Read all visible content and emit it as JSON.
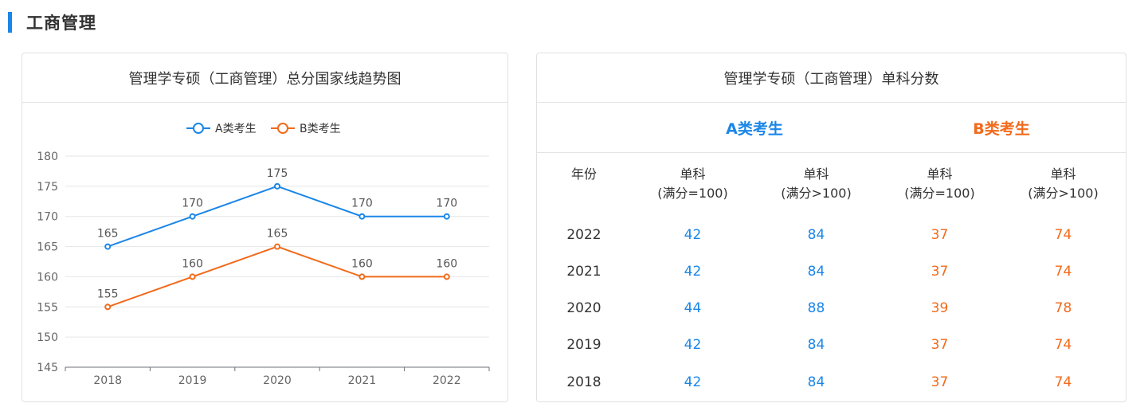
{
  "section": {
    "title": "工商管理"
  },
  "left_card": {
    "title": "管理学专硕（工商管理）总分国家线趋势图"
  },
  "right_card": {
    "title": "管理学专硕（工商管理）单科分数",
    "group_a": "A类考生",
    "group_b": "B类考生",
    "col_year": "年份",
    "col1_line1": "单科",
    "col1_line2": "(满分=100)",
    "col2_line1": "单科",
    "col2_line2": "(满分>100)",
    "col3_line1": "单科",
    "col3_line2": "(满分=100)",
    "col4_line1": "单科",
    "col4_line2": "(满分>100)",
    "rows": [
      {
        "year": "2022",
        "a1": "42",
        "a2": "84",
        "b1": "37",
        "b2": "74"
      },
      {
        "year": "2021",
        "a1": "42",
        "a2": "84",
        "b1": "37",
        "b2": "74"
      },
      {
        "year": "2020",
        "a1": "44",
        "a2": "88",
        "b1": "39",
        "b2": "78"
      },
      {
        "year": "2019",
        "a1": "42",
        "a2": "84",
        "b1": "37",
        "b2": "74"
      },
      {
        "year": "2018",
        "a1": "42",
        "a2": "84",
        "b1": "37",
        "b2": "74"
      }
    ]
  },
  "chart_data": {
    "type": "line",
    "title": "管理学专硕（工商管理）总分国家线趋势图",
    "categories": [
      "2018",
      "2019",
      "2020",
      "2021",
      "2022"
    ],
    "series": [
      {
        "name": "A类考生",
        "color": "#1a86e8",
        "values": [
          165,
          170,
          175,
          170,
          170
        ]
      },
      {
        "name": "B类考生",
        "color": "#f26a1b",
        "values": [
          155,
          160,
          165,
          160,
          160
        ]
      }
    ],
    "yticks": [
      145,
      150,
      155,
      160,
      165,
      170,
      175,
      180
    ],
    "ylim": [
      145,
      180
    ],
    "grid": true,
    "legend": "top-center",
    "data_labels": true
  }
}
